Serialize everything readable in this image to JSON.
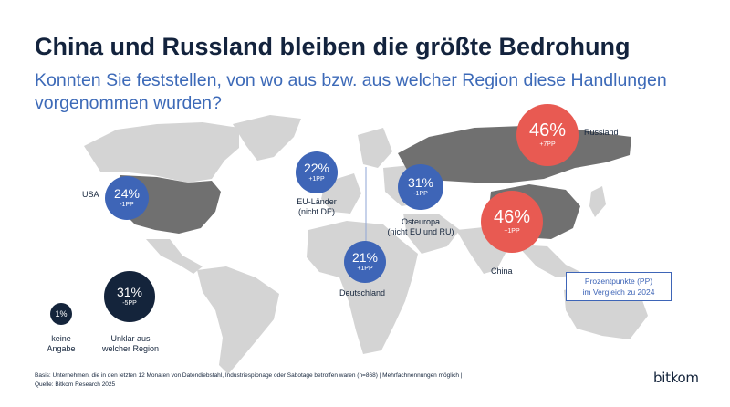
{
  "title": "China und Russland bleiben die größte Bedrohung",
  "subtitle": "Konnten Sie feststellen, von wo aus bzw. aus welcher Region diese Handlungen vorgenommen wurden?",
  "chart_data": {
    "type": "bubble-map",
    "unit": "%",
    "series": [
      {
        "region": "Russland",
        "value": 46,
        "change": "+7PP"
      },
      {
        "region": "China",
        "value": 46,
        "change": "+1PP"
      },
      {
        "region": "Osteuropa (nicht EU und RU)",
        "value": 31,
        "change": "-1PP"
      },
      {
        "region": "Unklar aus welcher Region",
        "value": 31,
        "change": "-5PP"
      },
      {
        "region": "USA",
        "value": 24,
        "change": "-1PP"
      },
      {
        "region": "EU-Länder (nicht DE)",
        "value": 22,
        "change": "+1PP"
      },
      {
        "region": "Deutschland",
        "value": 21,
        "change": "+1PP"
      },
      {
        "region": "keine Angabe",
        "value": 1,
        "change": ""
      }
    ]
  },
  "bubbles": {
    "russland": {
      "value": "46%",
      "change": "+7PP",
      "label": "Russland"
    },
    "china": {
      "value": "46%",
      "change": "+1PP",
      "label": "China"
    },
    "osteuropa": {
      "value": "31%",
      "change": "-1PP",
      "label_line1": "Osteuropa",
      "label_line2": "(nicht EU und RU)"
    },
    "usa": {
      "value": "24%",
      "change": "-1PP",
      "label": "USA"
    },
    "eu": {
      "value": "22%",
      "change": "+1PP",
      "label_line1": "EU-Länder",
      "label_line2": "(nicht DE)"
    },
    "deutschland": {
      "value": "21%",
      "change": "+1PP",
      "label": "Deutschland"
    },
    "unklar": {
      "value": "31%",
      "change": "-5PP",
      "label_line1": "Unklar aus",
      "label_line2": "welcher Region"
    },
    "keine": {
      "value": "1%",
      "label_line1": "keine",
      "label_line2": "Angabe"
    }
  },
  "legend": {
    "line1": "Prozentpunkte (PP)",
    "line2": "im Vergleich zu 2024"
  },
  "footer": {
    "basis": "Basis: Unternehmen, die in den letzten 12 Monaten von Datendiebstahl, Industriespionage oder Sabotage betroffen waren (n=868) | Mehrfachnennungen möglich |",
    "source": "Quelle: Bitkom Research 2025"
  },
  "logo": "bitkom",
  "colors": {
    "navy": "#14243b",
    "blue": "#3e65b7",
    "red": "#e85a52",
    "land": "#d4d4d4",
    "highlight_land": "#707070"
  }
}
